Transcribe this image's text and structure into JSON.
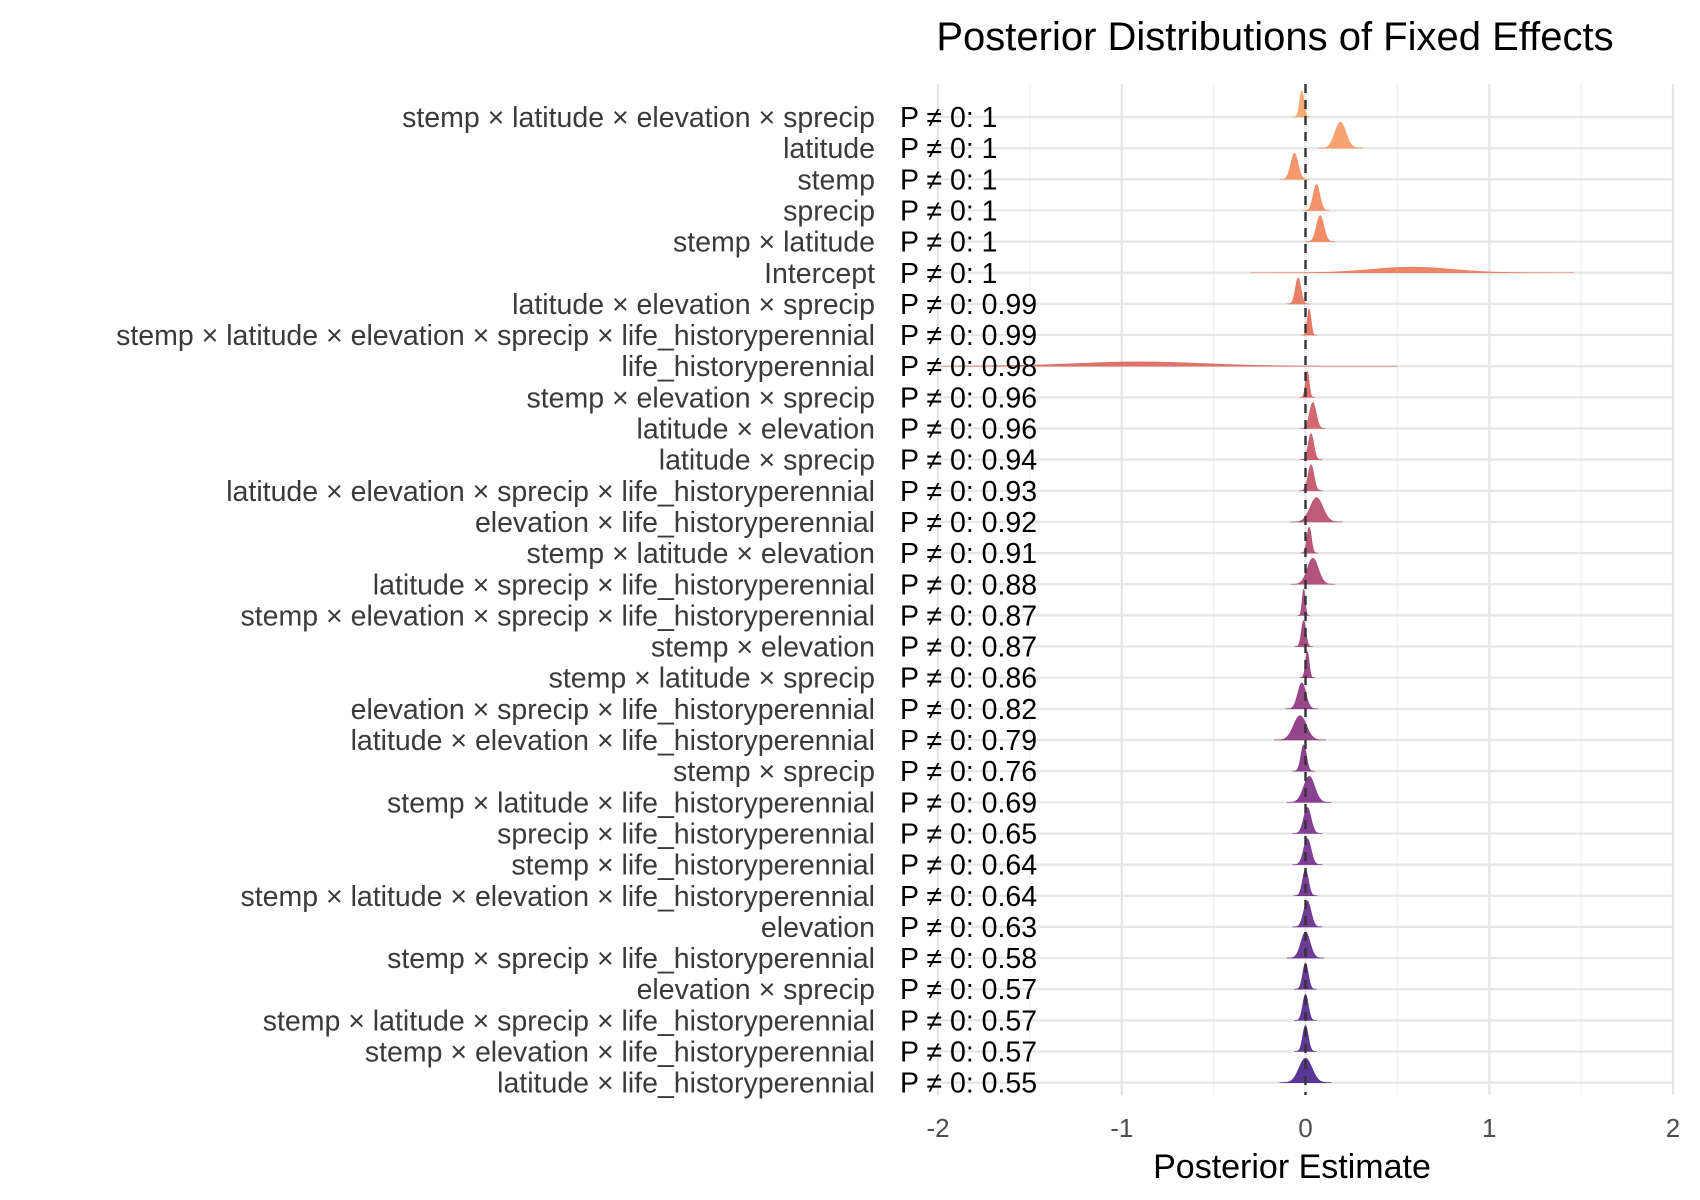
{
  "chart_data": {
    "type": "ridgeline",
    "title": "Posterior Distributions of Fixed Effects",
    "xlabel": "Posterior Estimate",
    "ylabel": "",
    "xlim": [
      -2,
      2
    ],
    "x_ticks": [
      -2,
      -1,
      0,
      1,
      2
    ],
    "x_tick_labels": [
      "-2",
      "-1",
      "0",
      "1",
      "2"
    ],
    "reference_line": 0,
    "grid": true,
    "legend": "none",
    "series": [
      {
        "term": "stemp × latitude × elevation × sprecip",
        "p_label": "P ≠ 0: 1",
        "mean": -0.02,
        "sd": 0.012,
        "color": "#F6A66B"
      },
      {
        "term": "latitude",
        "p_label": "P ≠ 0: 1",
        "mean": 0.19,
        "sd": 0.03,
        "color": "#F59E68"
      },
      {
        "term": "stemp",
        "p_label": "P ≠ 0: 1",
        "mean": -0.06,
        "sd": 0.02,
        "color": "#F39466"
      },
      {
        "term": "sprecip",
        "p_label": "P ≠ 0: 1",
        "mean": 0.06,
        "sd": 0.018,
        "color": "#F18D63"
      },
      {
        "term": "stemp × latitude",
        "p_label": "P ≠ 0: 1",
        "mean": 0.08,
        "sd": 0.02,
        "color": "#EF8660"
      },
      {
        "term": "Intercept",
        "p_label": "P ≠ 0: 1",
        "mean": 0.58,
        "sd": 0.22,
        "color": "#EC7F5E"
      },
      {
        "term": "latitude × elevation × sprecip",
        "p_label": "P ≠ 0: 0.99",
        "mean": -0.04,
        "sd": 0.015,
        "color": "#E8785E"
      },
      {
        "term": "stemp × latitude × elevation × sprecip × life_historyperennial",
        "p_label": "P ≠ 0: 0.99",
        "mean": 0.02,
        "sd": 0.01,
        "color": "#E3715F"
      },
      {
        "term": "life_historyperennial",
        "p_label": "P ≠ 0: 0.98",
        "mean": -0.9,
        "sd": 0.35,
        "color": "#DD6B62"
      },
      {
        "term": "stemp × elevation × sprecip",
        "p_label": "P ≠ 0: 0.96",
        "mean": 0.01,
        "sd": 0.01,
        "color": "#D76565"
      },
      {
        "term": "latitude × elevation",
        "p_label": "P ≠ 0: 0.96",
        "mean": 0.04,
        "sd": 0.018,
        "color": "#D06068"
      },
      {
        "term": "latitude × sprecip",
        "p_label": "P ≠ 0: 0.94",
        "mean": 0.03,
        "sd": 0.015,
        "color": "#C95B6B"
      },
      {
        "term": "latitude × elevation × sprecip × life_historyperennial",
        "p_label": "P ≠ 0: 0.93",
        "mean": 0.03,
        "sd": 0.016,
        "color": "#C2576E"
      },
      {
        "term": "elevation × life_historyperennial",
        "p_label": "P ≠ 0: 0.92",
        "mean": 0.06,
        "sd": 0.035,
        "color": "#BB5271"
      },
      {
        "term": "stemp × latitude × elevation",
        "p_label": "P ≠ 0: 0.91",
        "mean": 0.02,
        "sd": 0.012,
        "color": "#B44E74"
      },
      {
        "term": "latitude × sprecip × life_historyperennial",
        "p_label": "P ≠ 0: 0.88",
        "mean": 0.04,
        "sd": 0.03,
        "color": "#AD4A77"
      },
      {
        "term": "stemp × elevation × sprecip × life_historyperennial",
        "p_label": "P ≠ 0: 0.87",
        "mean": -0.01,
        "sd": 0.008,
        "color": "#A6477A"
      },
      {
        "term": "stemp × elevation",
        "p_label": "P ≠ 0: 0.87",
        "mean": -0.01,
        "sd": 0.012,
        "color": "#A0437D"
      },
      {
        "term": "stemp × latitude × sprecip",
        "p_label": "P ≠ 0: 0.86",
        "mean": 0.01,
        "sd": 0.01,
        "color": "#9A4080"
      },
      {
        "term": "elevation × sprecip × life_historyperennial",
        "p_label": "P ≠ 0: 0.82",
        "mean": -0.02,
        "sd": 0.022,
        "color": "#943D83"
      },
      {
        "term": "latitude × elevation × life_historyperennial",
        "p_label": "P ≠ 0: 0.79",
        "mean": -0.03,
        "sd": 0.035,
        "color": "#8E3B86"
      },
      {
        "term": "stemp × sprecip",
        "p_label": "P ≠ 0: 0.76",
        "mean": -0.01,
        "sd": 0.015,
        "color": "#883988"
      },
      {
        "term": "stemp × latitude × life_historyperennial",
        "p_label": "P ≠ 0: 0.69",
        "mean": 0.02,
        "sd": 0.03,
        "color": "#82378A"
      },
      {
        "term": "sprecip × life_historyperennial",
        "p_label": "P ≠ 0: 0.65",
        "mean": 0.01,
        "sd": 0.02,
        "color": "#7C368C"
      },
      {
        "term": "stemp × life_historyperennial",
        "p_label": "P ≠ 0: 0.64",
        "mean": 0.01,
        "sd": 0.02,
        "color": "#76358D"
      },
      {
        "term": "stemp × latitude × elevation × life_historyperennial",
        "p_label": "P ≠ 0: 0.64",
        "mean": 0.0,
        "sd": 0.016,
        "color": "#70338E"
      },
      {
        "term": "elevation",
        "p_label": "P ≠ 0: 0.63",
        "mean": 0.01,
        "sd": 0.02,
        "color": "#6A328F"
      },
      {
        "term": "stemp × sprecip × life_historyperennial",
        "p_label": "P ≠ 0: 0.58",
        "mean": 0.0,
        "sd": 0.025,
        "color": "#643190"
      },
      {
        "term": "elevation × sprecip",
        "p_label": "P ≠ 0: 0.57",
        "mean": 0.0,
        "sd": 0.015,
        "color": "#5E3090"
      },
      {
        "term": "stemp × latitude × sprecip × life_historyperennial",
        "p_label": "P ≠ 0: 0.57",
        "mean": 0.0,
        "sd": 0.015,
        "color": "#592F90"
      },
      {
        "term": "stemp × elevation × life_historyperennial",
        "p_label": "P ≠ 0: 0.57",
        "mean": 0.0,
        "sd": 0.015,
        "color": "#542E8F"
      },
      {
        "term": "latitude × life_historyperennial",
        "p_label": "P ≠ 0: 0.55",
        "mean": 0.0,
        "sd": 0.035,
        "color": "#4F2D8E"
      }
    ]
  }
}
